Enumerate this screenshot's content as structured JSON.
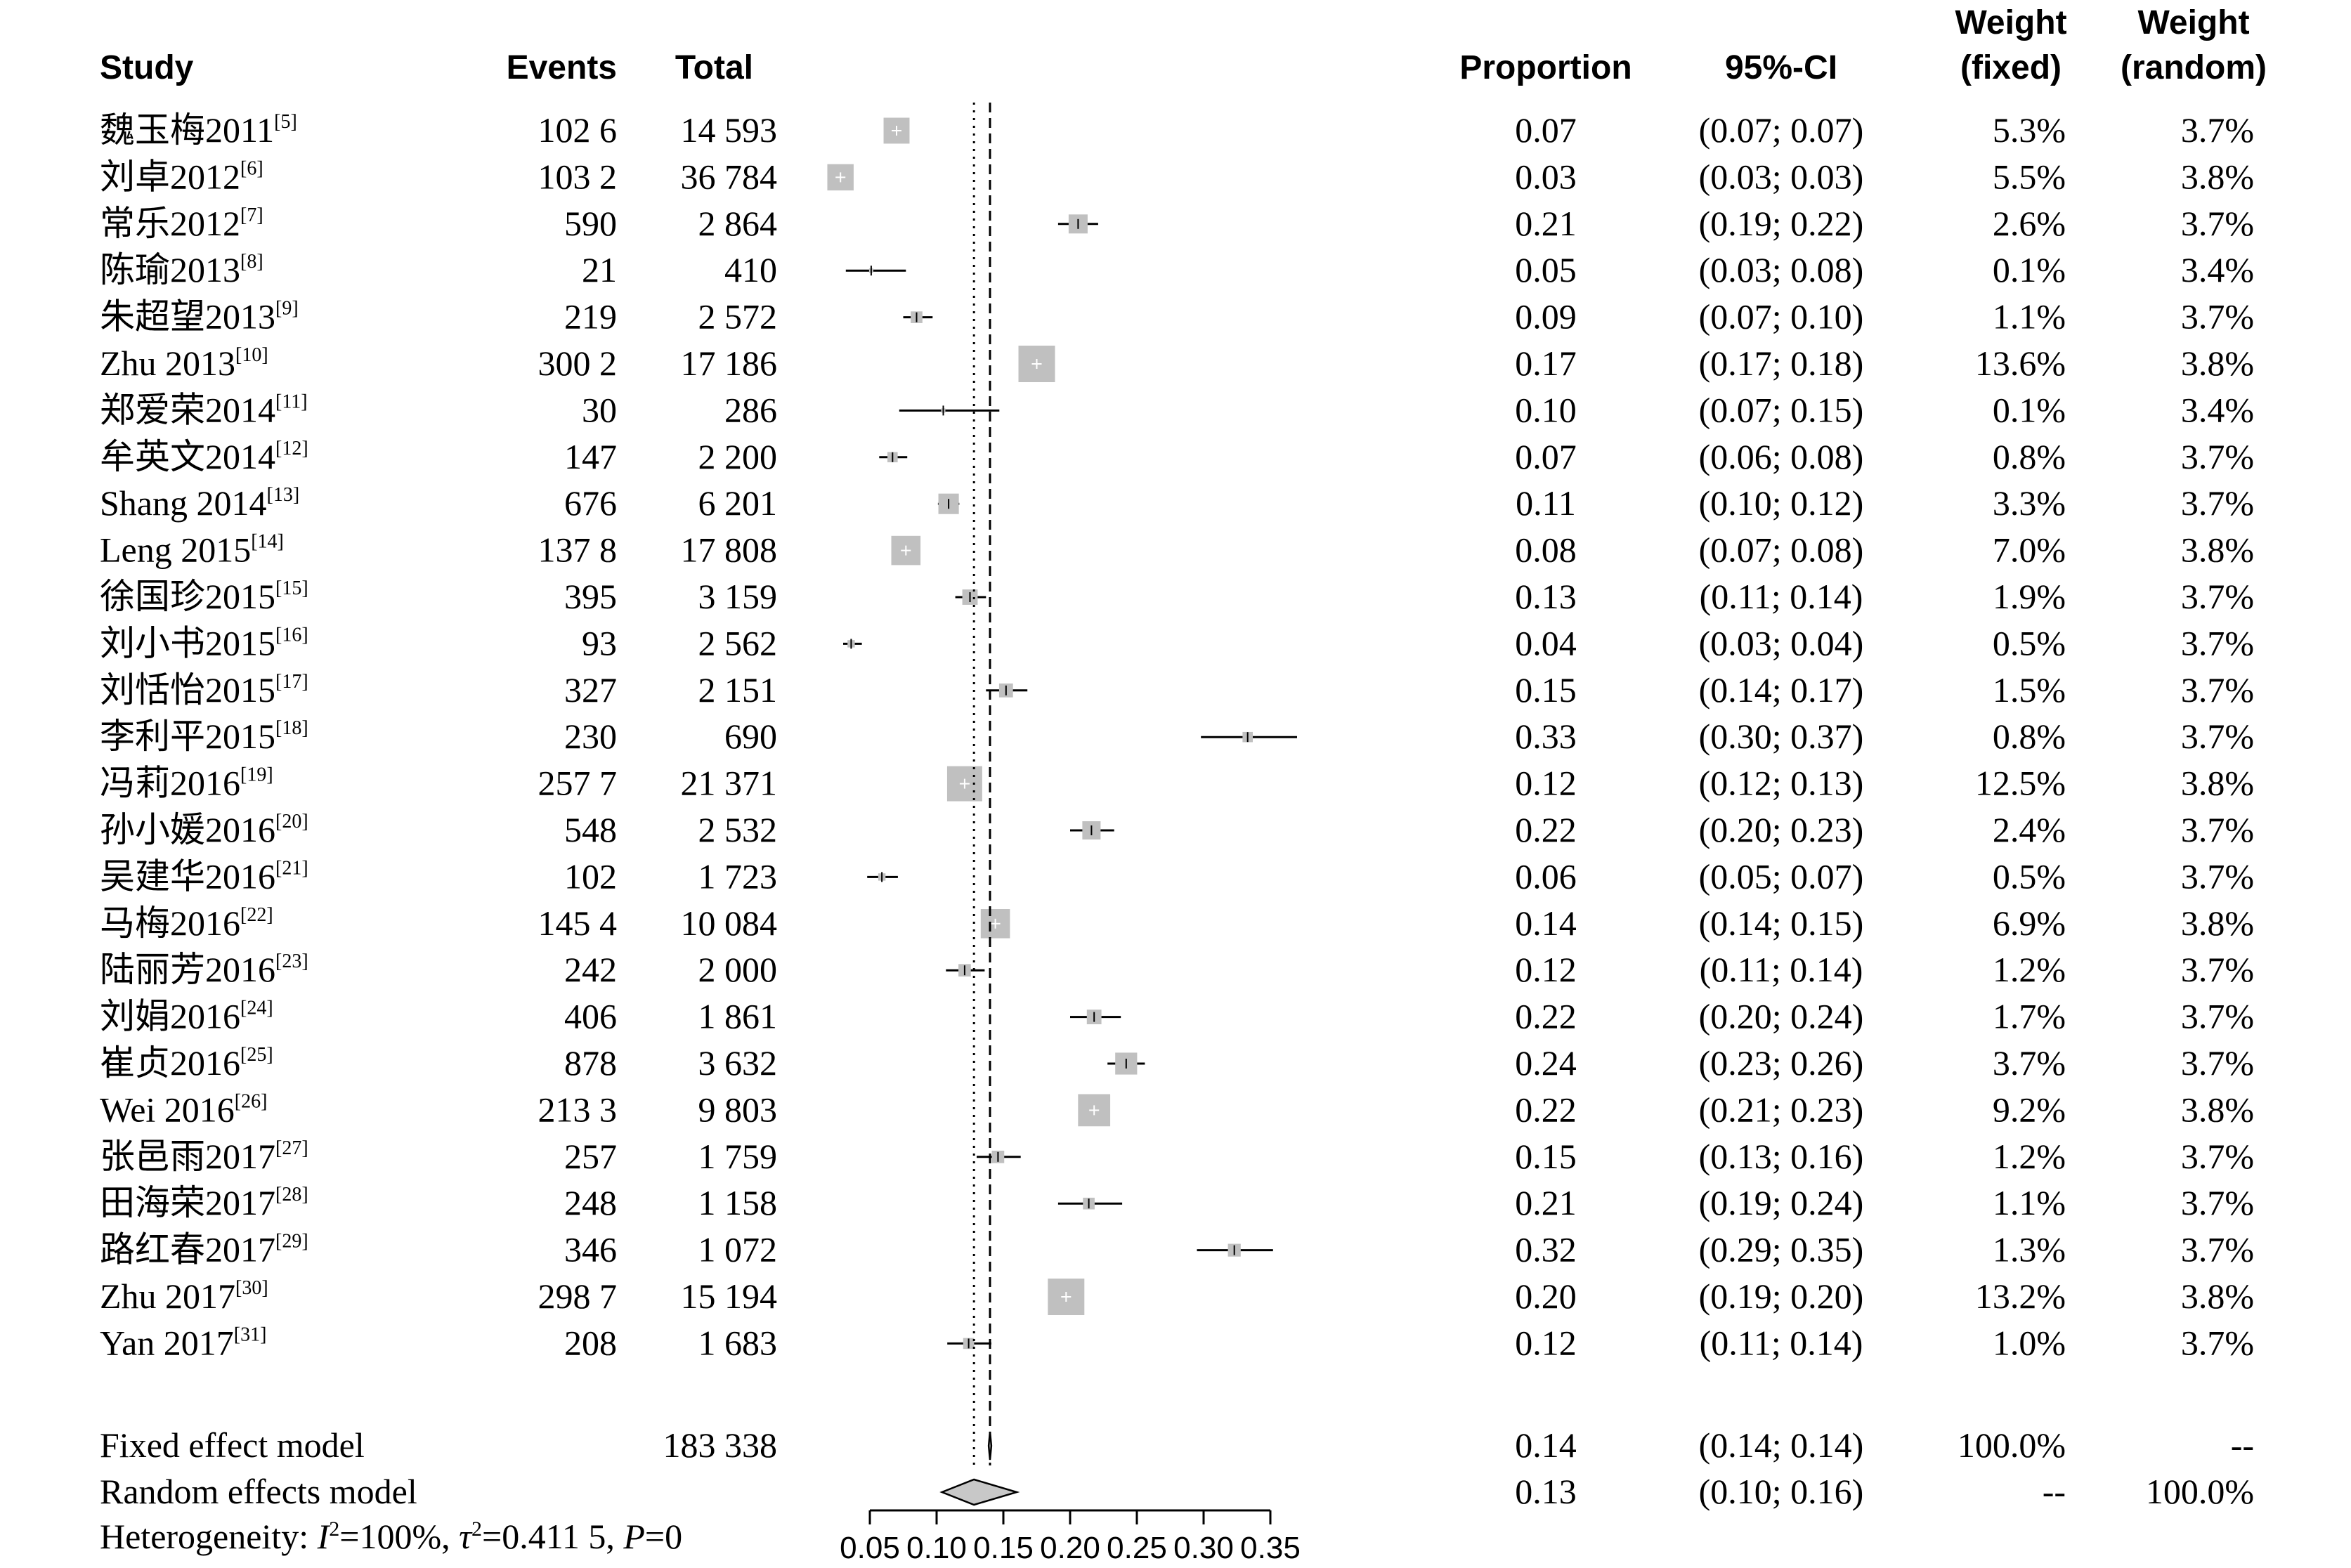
{
  "headers": {
    "study": "Study",
    "events": "Events",
    "total": "Total",
    "proportion": "Proportion",
    "ci": "95%-CI",
    "weight_fixed": [
      "Weight",
      "(fixed)"
    ],
    "weight_random": [
      "Weight",
      "(random)"
    ]
  },
  "chart_data": {
    "type": "forest",
    "x_ticks": [
      "0.05",
      "0.10",
      "0.15",
      "0.20",
      "0.25",
      "0.30",
      "0.35"
    ],
    "xlim": [
      0.05,
      0.35
    ],
    "fixed_line": 0.14,
    "random_line": 0.128,
    "studies": [
      {
        "name": "魏玉梅2011",
        "ref": "[5]",
        "events": "102 6",
        "total": "14 593",
        "proportion": "0.07",
        "ci": "(0.07; 0.07)",
        "w_fixed": "5.3%",
        "w_random": "3.7%",
        "est": 0.07,
        "lo": 0.069,
        "hi": 0.072,
        "box": 0.71
      },
      {
        "name": "刘卓2012",
        "ref": "[6]",
        "events": "103 2",
        "total": "36 784",
        "proportion": "0.03",
        "ci": "(0.03; 0.03)",
        "w_fixed": "5.5%",
        "w_random": "3.8%",
        "est": 0.028,
        "lo": 0.027,
        "hi": 0.029,
        "box": 0.72
      },
      {
        "name": "常乐2012",
        "ref": "[7]",
        "events": "590",
        "total": "2 864",
        "proportion": "0.21",
        "ci": "(0.19; 0.22)",
        "w_fixed": "2.6%",
        "w_random": "3.7%",
        "est": 0.206,
        "lo": 0.191,
        "hi": 0.221,
        "box": 0.52
      },
      {
        "name": "陈瑜2013",
        "ref": "[8]",
        "events": "21",
        "total": "410",
        "proportion": "0.05",
        "ci": "(0.03; 0.08)",
        "w_fixed": "0.1%",
        "w_random": "3.4%",
        "est": 0.051,
        "lo": 0.032,
        "hi": 0.077,
        "box": 0.1
      },
      {
        "name": "朱超望2013",
        "ref": "[9]",
        "events": "219",
        "total": "2 572",
        "proportion": "0.09",
        "ci": "(0.07; 0.10)",
        "w_fixed": "1.1%",
        "w_random": "3.7%",
        "est": 0.085,
        "lo": 0.075,
        "hi": 0.097,
        "box": 0.32
      },
      {
        "name": "Zhu 2013",
        "ref": "[10]",
        "events": "300 2",
        "total": "17 186",
        "proportion": "0.17",
        "ci": "(0.17; 0.18)",
        "w_fixed": "13.6%",
        "w_random": "3.8%",
        "est": 0.175,
        "lo": 0.169,
        "hi": 0.18,
        "box": 1.0
      },
      {
        "name": "郑爱荣2014",
        "ref": "[11]",
        "events": "30",
        "total": "286",
        "proportion": "0.10",
        "ci": "(0.07; 0.15)",
        "w_fixed": "0.1%",
        "w_random": "3.4%",
        "est": 0.105,
        "lo": 0.072,
        "hi": 0.147,
        "box": 0.1
      },
      {
        "name": "牟英文2014",
        "ref": "[12]",
        "events": "147",
        "total": "2 200",
        "proportion": "0.07",
        "ci": "(0.06; 0.08)",
        "w_fixed": "0.8%",
        "w_random": "3.7%",
        "est": 0.067,
        "lo": 0.057,
        "hi": 0.078,
        "box": 0.28
      },
      {
        "name": "Shang 2014",
        "ref": "[13]",
        "events": "676",
        "total": "6 201",
        "proportion": "0.11",
        "ci": "(0.10; 0.12)",
        "w_fixed": "3.3%",
        "w_random": "3.7%",
        "est": 0.109,
        "lo": 0.101,
        "hi": 0.117,
        "box": 0.56
      },
      {
        "name": "Leng 2015",
        "ref": "[14]",
        "events": "137 8",
        "total": "17 808",
        "proportion": "0.08",
        "ci": "(0.07; 0.08)",
        "w_fixed": "7.0%",
        "w_random": "3.8%",
        "est": 0.077,
        "lo": 0.074,
        "hi": 0.081,
        "box": 0.8
      },
      {
        "name": "徐国珍2015",
        "ref": "[15]",
        "events": "395",
        "total": "3 159",
        "proportion": "0.13",
        "ci": "(0.11; 0.14)",
        "w_fixed": "1.9%",
        "w_random": "3.7%",
        "est": 0.125,
        "lo": 0.114,
        "hi": 0.137,
        "box": 0.42
      },
      {
        "name": "刘小书2015",
        "ref": "[16]",
        "events": "93",
        "total": "2 562",
        "proportion": "0.04",
        "ci": "(0.03; 0.04)",
        "w_fixed": "0.5%",
        "w_random": "3.7%",
        "est": 0.036,
        "lo": 0.03,
        "hi": 0.044,
        "box": 0.2
      },
      {
        "name": "刘恬怡2015",
        "ref": "[17]",
        "events": "327",
        "total": "2 151",
        "proportion": "0.15",
        "ci": "(0.14; 0.17)",
        "w_fixed": "1.5%",
        "w_random": "3.7%",
        "est": 0.152,
        "lo": 0.137,
        "hi": 0.168,
        "box": 0.38
      },
      {
        "name": "李利平2015",
        "ref": "[18]",
        "events": "230",
        "total": "690",
        "proportion": "0.33",
        "ci": "(0.30; 0.37)",
        "w_fixed": "0.8%",
        "w_random": "3.7%",
        "est": 0.333,
        "lo": 0.298,
        "hi": 0.37,
        "box": 0.28
      },
      {
        "name": "冯莉2016",
        "ref": "[19]",
        "events": "257 7",
        "total": "21 371",
        "proportion": "0.12",
        "ci": "(0.12; 0.13)",
        "w_fixed": "12.5%",
        "w_random": "3.8%",
        "est": 0.121,
        "lo": 0.117,
        "hi": 0.125,
        "box": 0.96
      },
      {
        "name": "孙小媛2016",
        "ref": "[20]",
        "events": "548",
        "total": "2 532",
        "proportion": "0.22",
        "ci": "(0.20; 0.23)",
        "w_fixed": "2.4%",
        "w_random": "3.7%",
        "est": 0.216,
        "lo": 0.2,
        "hi": 0.233,
        "box": 0.5
      },
      {
        "name": "吴建华2016",
        "ref": "[21]",
        "events": "102",
        "total": "1 723",
        "proportion": "0.06",
        "ci": "(0.05; 0.07)",
        "w_fixed": "0.5%",
        "w_random": "3.7%",
        "est": 0.059,
        "lo": 0.048,
        "hi": 0.071,
        "box": 0.2
      },
      {
        "name": "马梅2016",
        "ref": "[22]",
        "events": "145 4",
        "total": "10 084",
        "proportion": "0.14",
        "ci": "(0.14; 0.15)",
        "w_fixed": "6.9%",
        "w_random": "3.8%",
        "est": 0.144,
        "lo": 0.137,
        "hi": 0.151,
        "box": 0.8
      },
      {
        "name": "陆丽芳2016",
        "ref": "[23]",
        "events": "242",
        "total": "2 000",
        "proportion": "0.12",
        "ci": "(0.11; 0.14)",
        "w_fixed": "1.2%",
        "w_random": "3.7%",
        "est": 0.121,
        "lo": 0.107,
        "hi": 0.136,
        "box": 0.34
      },
      {
        "name": "刘娟2016",
        "ref": "[24]",
        "events": "406",
        "total": "1 861",
        "proportion": "0.22",
        "ci": "(0.20; 0.24)",
        "w_fixed": "1.7%",
        "w_random": "3.7%",
        "est": 0.218,
        "lo": 0.2,
        "hi": 0.238,
        "box": 0.4
      },
      {
        "name": "崔贞2016",
        "ref": "[25]",
        "events": "878",
        "total": "3 632",
        "proportion": "0.24",
        "ci": "(0.23; 0.26)",
        "w_fixed": "3.7%",
        "w_random": "3.7%",
        "est": 0.242,
        "lo": 0.228,
        "hi": 0.256,
        "box": 0.6
      },
      {
        "name": "Wei 2016",
        "ref": "[26]",
        "events": "213 3",
        "total": "9 803",
        "proportion": "0.22",
        "ci": "(0.21; 0.23)",
        "w_fixed": "9.2%",
        "w_random": "3.8%",
        "est": 0.218,
        "lo": 0.209,
        "hi": 0.226,
        "box": 0.88
      },
      {
        "name": "张邑雨2017",
        "ref": "[27]",
        "events": "257",
        "total": "1 759",
        "proportion": "0.15",
        "ci": "(0.13; 0.16)",
        "w_fixed": "1.2%",
        "w_random": "3.7%",
        "est": 0.146,
        "lo": 0.13,
        "hi": 0.163,
        "box": 0.34
      },
      {
        "name": "田海荣2017",
        "ref": "[28]",
        "events": "248",
        "total": "1 158",
        "proportion": "0.21",
        "ci": "(0.19; 0.24)",
        "w_fixed": "1.1%",
        "w_random": "3.7%",
        "est": 0.214,
        "lo": 0.191,
        "hi": 0.239,
        "box": 0.32
      },
      {
        "name": "路红春2017",
        "ref": "[29]",
        "events": "346",
        "total": "1 072",
        "proportion": "0.32",
        "ci": "(0.29; 0.35)",
        "w_fixed": "1.3%",
        "w_random": "3.7%",
        "est": 0.323,
        "lo": 0.295,
        "hi": 0.352,
        "box": 0.35
      },
      {
        "name": "Zhu 2017",
        "ref": "[30]",
        "events": "298 7",
        "total": "15 194",
        "proportion": "0.20",
        "ci": "(0.19; 0.20)",
        "w_fixed": "13.2%",
        "w_random": "3.8%",
        "est": 0.197,
        "lo": 0.19,
        "hi": 0.203,
        "box": 1.0
      },
      {
        "name": "Yan 2017",
        "ref": "[31]",
        "events": "208",
        "total": "1 683",
        "proportion": "0.12",
        "ci": "(0.11; 0.14)",
        "w_fixed": "1.0%",
        "w_random": "3.7%",
        "est": 0.124,
        "lo": 0.108,
        "hi": 0.141,
        "box": 0.3
      }
    ],
    "fixed": {
      "label": "Fixed effect model",
      "total": "183 338",
      "proportion": "0.14",
      "ci": "(0.14; 0.14)",
      "w_fixed": "100.0%",
      "w_random": "--",
      "est": 0.14,
      "lo": 0.139,
      "hi": 0.141
    },
    "random": {
      "label": "Random effects model",
      "proportion": "0.13",
      "ci": "(0.10; 0.16)",
      "w_fixed": "--",
      "w_random": "100.0%",
      "est": 0.128,
      "lo": 0.104,
      "hi": 0.16
    },
    "heterogeneity": {
      "prefix": "Heterogeneity: ",
      "i_sym": "I",
      "i_val": "=100%, ",
      "tau_sym": "τ",
      "tau_val": "=0.411 5, ",
      "p_sym": "P",
      "p_val": "=0"
    }
  }
}
